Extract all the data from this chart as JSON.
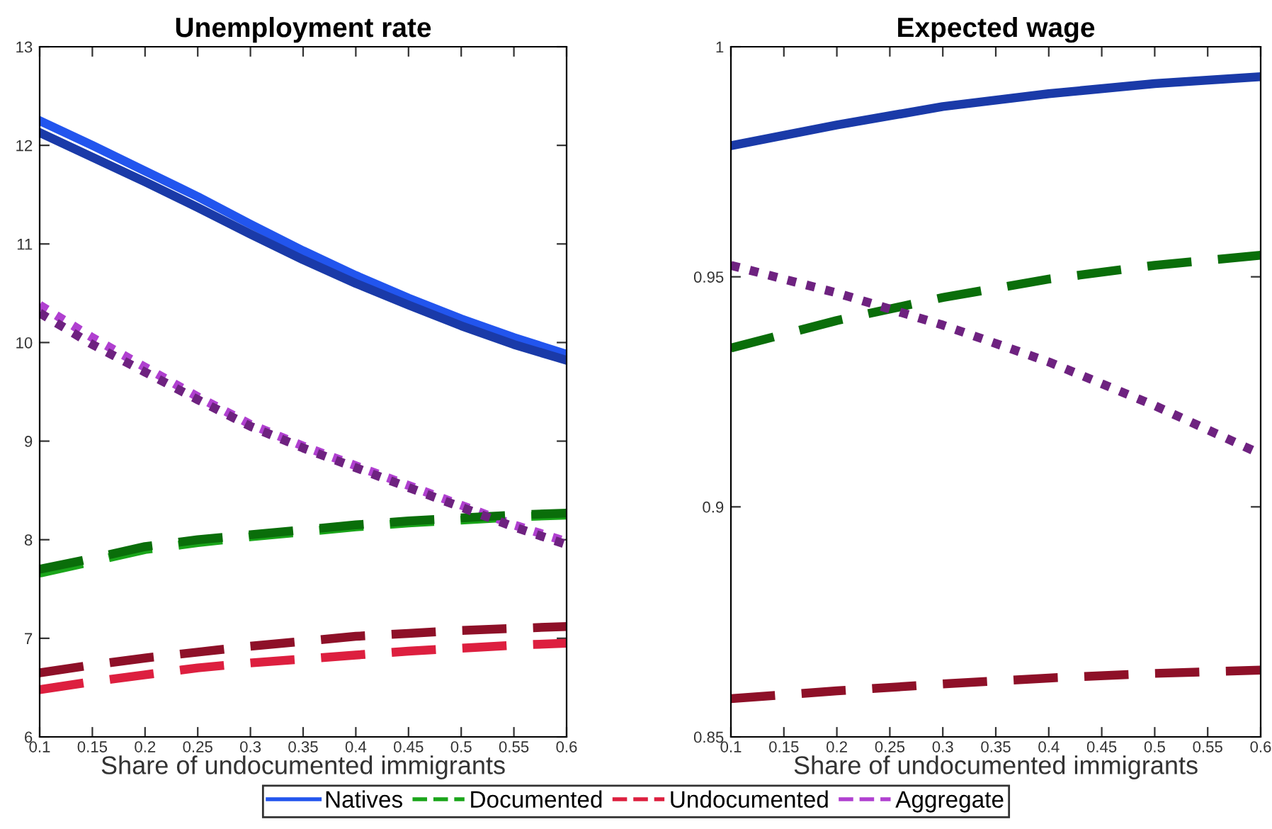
{
  "chart_data": [
    {
      "type": "line",
      "title": "Unemployment rate",
      "xlabel": "Share of undocumented immigrants",
      "legend": "bottom",
      "grid": false,
      "xlim": [
        0.1,
        0.6
      ],
      "ylim": [
        6,
        13
      ],
      "xticks": [
        0.1,
        0.15,
        0.2,
        0.25,
        0.3,
        0.35,
        0.4,
        0.45,
        0.5,
        0.55,
        0.6
      ],
      "yticks": [
        6,
        7,
        8,
        9,
        10,
        11,
        12,
        13
      ],
      "x": [
        0.1,
        0.15,
        0.2,
        0.25,
        0.3,
        0.35,
        0.4,
        0.45,
        0.5,
        0.55,
        0.6
      ],
      "series": [
        {
          "name": "Natives",
          "color": "#2255ee",
          "line_style": "solid",
          "values": [
            12.25,
            12.0,
            11.74,
            11.48,
            11.2,
            10.93,
            10.68,
            10.45,
            10.24,
            10.05,
            9.88
          ]
        },
        {
          "name": "Documented",
          "color": "#1aa51a",
          "line_style": "dashed",
          "values": [
            7.66,
            7.78,
            7.9,
            7.97,
            8.03,
            8.08,
            8.13,
            8.17,
            8.2,
            8.23,
            8.25
          ]
        },
        {
          "name": "Undocumented",
          "color": "#dd1f3f",
          "line_style": "dashed",
          "values": [
            6.48,
            6.56,
            6.63,
            6.7,
            6.75,
            6.79,
            6.83,
            6.87,
            6.9,
            6.93,
            6.95
          ]
        },
        {
          "name": "Aggregate",
          "color": "#b040d0",
          "line_style": "dotted",
          "values": [
            10.38,
            10.05,
            9.75,
            9.45,
            9.17,
            8.95,
            8.75,
            8.55,
            8.35,
            8.15,
            7.98
          ]
        },
        {
          "color": "#1a3aa8",
          "line_style": "solid",
          "values": [
            12.13,
            11.88,
            11.63,
            11.37,
            11.1,
            10.84,
            10.6,
            10.38,
            10.17,
            9.98,
            9.82
          ]
        },
        {
          "color": "#0a6e0a",
          "line_style": "dashed",
          "values": [
            7.7,
            7.81,
            7.93,
            8.0,
            8.05,
            8.1,
            8.15,
            8.19,
            8.22,
            8.25,
            8.27
          ]
        },
        {
          "color": "#8e1028",
          "line_style": "dashed",
          "values": [
            6.65,
            6.73,
            6.8,
            6.86,
            6.92,
            6.97,
            7.02,
            7.05,
            7.08,
            7.1,
            7.12
          ]
        },
        {
          "color": "#6e2280",
          "line_style": "dotted",
          "values": [
            10.3,
            9.98,
            9.7,
            9.42,
            9.15,
            8.93,
            8.73,
            8.53,
            8.33,
            8.13,
            7.95
          ]
        }
      ]
    },
    {
      "type": "line",
      "title": "Expected wage",
      "xlabel": "Share of undocumented immigrants",
      "grid": false,
      "xlim": [
        0.1,
        0.6
      ],
      "ylim": [
        0.85,
        1
      ],
      "xticks": [
        0.1,
        0.15,
        0.2,
        0.25,
        0.3,
        0.35,
        0.4,
        0.45,
        0.5,
        0.55,
        0.6
      ],
      "yticks": [
        0.85,
        0.9,
        0.95,
        1
      ],
      "x": [
        0.1,
        0.2,
        0.3,
        0.4,
        0.5,
        0.6
      ],
      "series": [
        {
          "color": "#1a3aa8",
          "line_style": "solid",
          "values": [
            0.9785,
            0.983,
            0.987,
            0.9898,
            0.992,
            0.9935
          ]
        },
        {
          "color": "#0a6e0a",
          "line_style": "dashed",
          "values": [
            0.9345,
            0.9405,
            0.9455,
            0.9495,
            0.9525,
            0.9547
          ]
        },
        {
          "color": "#8e1028",
          "line_style": "dashed",
          "values": [
            0.8583,
            0.86,
            0.8615,
            0.8628,
            0.8638,
            0.8645
          ]
        },
        {
          "color": "#6e2280",
          "line_style": "dotted",
          "values": [
            0.9525,
            0.9465,
            0.9395,
            0.9315,
            0.922,
            0.9115
          ]
        }
      ]
    }
  ]
}
